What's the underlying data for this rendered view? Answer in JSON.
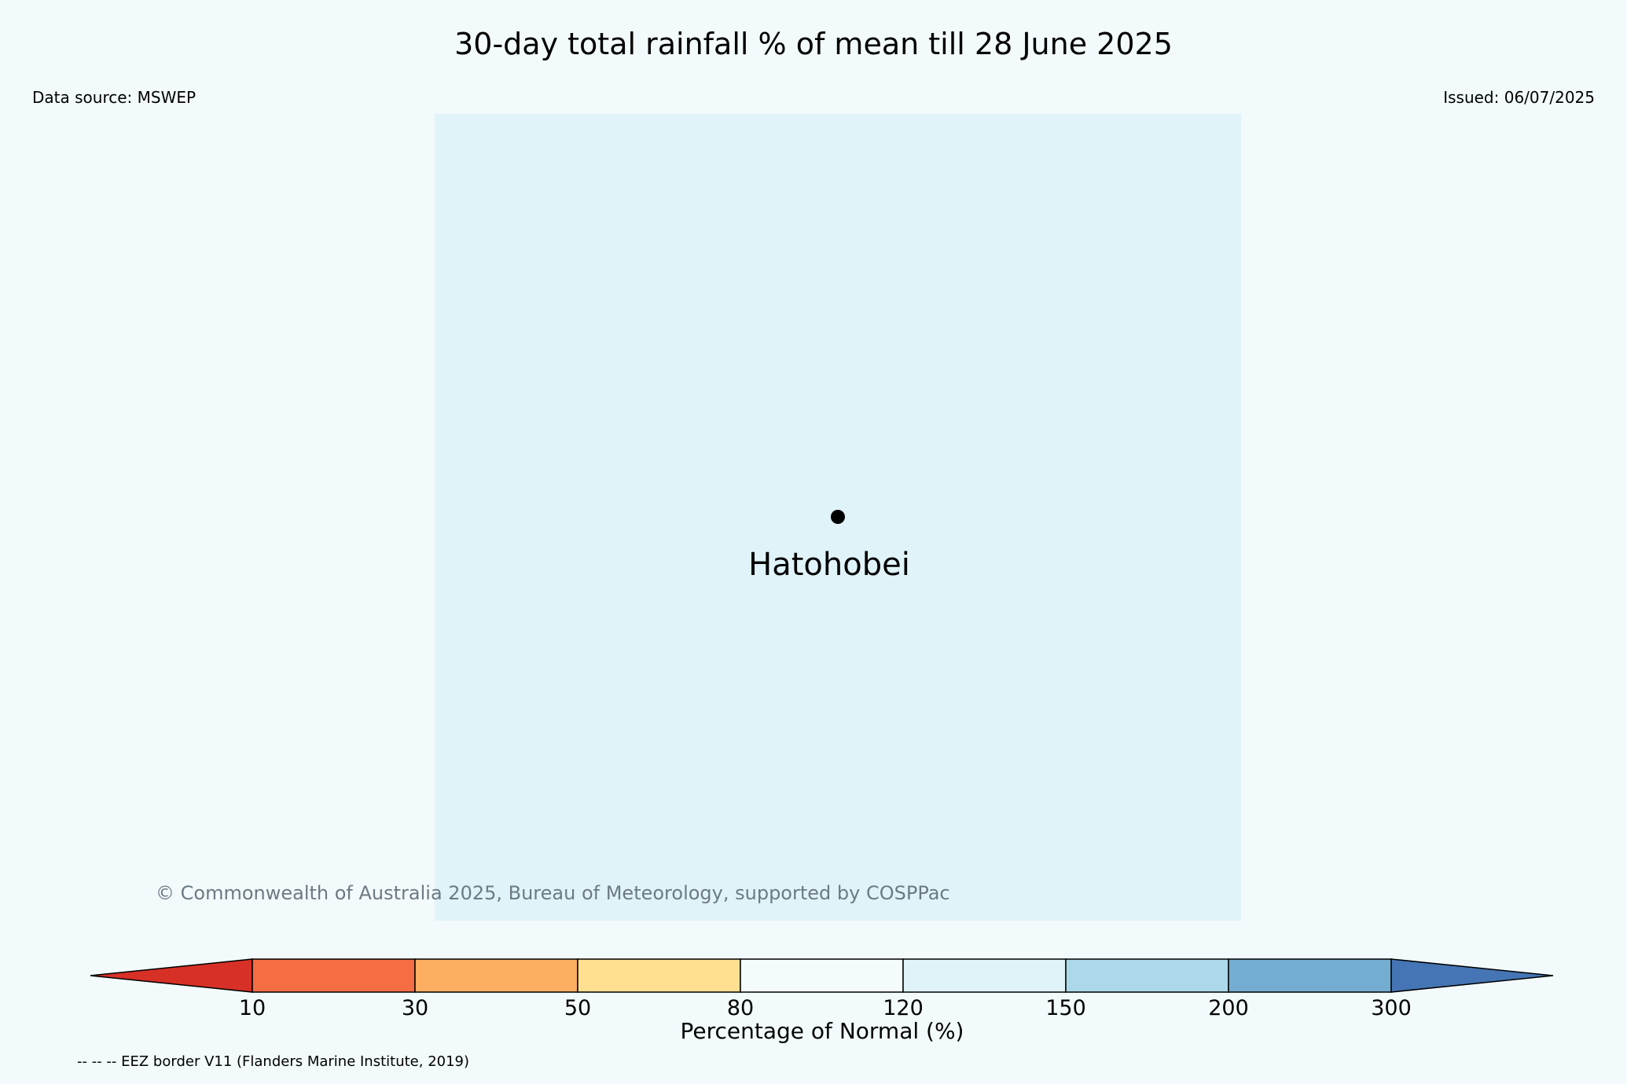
{
  "header": {
    "title": "30-day total rainfall % of mean till 28 June 2025",
    "data_source": "Data source: MSWEP",
    "issued": "Issued: 06/07/2025"
  },
  "map": {
    "background_color": "#f2fafb",
    "region_fill_color": "#e0f3f8",
    "place": {
      "name": "Hatohobei",
      "marker_icon": "location-dot-icon"
    },
    "copyright": "© Commonwealth of Australia 2025, Bureau of Meteorology, supported by COSPPac"
  },
  "legend": {
    "label": "Percentage of Normal (%)",
    "ticks": [
      "10",
      "30",
      "50",
      "80",
      "120",
      "150",
      "200",
      "300"
    ],
    "colors": {
      "below_10": "#d73027",
      "10_30": "#f46d43",
      "30_50": "#fdae61",
      "50_80": "#fee090",
      "80_120": "#f4fbfd",
      "120_150": "#e0f3f8",
      "150_200": "#abd9e9",
      "200_300": "#74add1",
      "above_300": "#4575b4"
    },
    "eez_note": "-- -- -- EEZ border V11 (Flanders Marine Institute, 2019)"
  }
}
